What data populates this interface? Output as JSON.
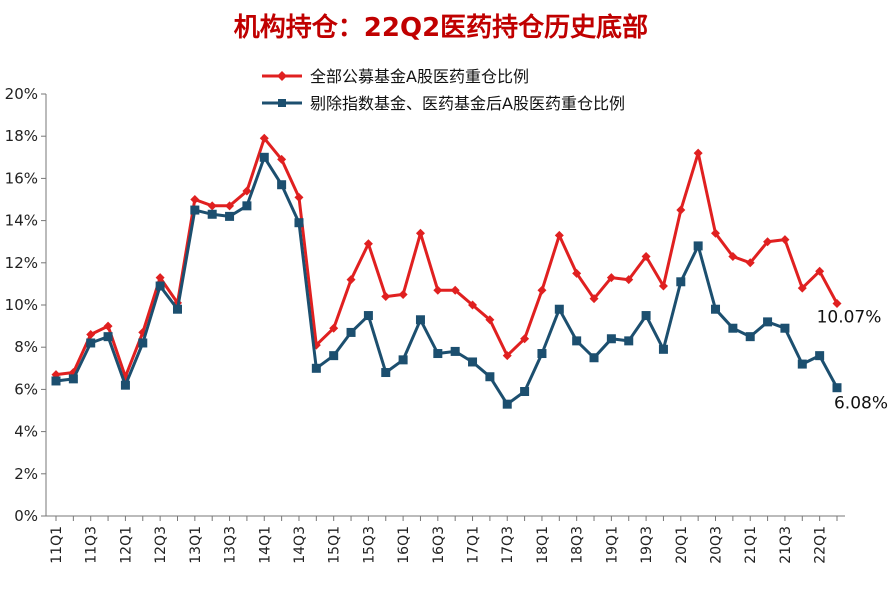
{
  "chart_data": {
    "type": "line",
    "title": "机构持仓：22Q2医药持仓历史底部",
    "xlabel": "",
    "ylabel": "",
    "ylim": [
      0,
      20
    ],
    "y_ticks": [
      "0%",
      "2%",
      "4%",
      "6%",
      "8%",
      "10%",
      "12%",
      "14%",
      "16%",
      "18%",
      "20%"
    ],
    "x": [
      "11Q1",
      "11Q2",
      "11Q3",
      "11Q4",
      "12Q1",
      "12Q2",
      "12Q3",
      "12Q4",
      "13Q1",
      "13Q2",
      "13Q3",
      "13Q4",
      "14Q1",
      "14Q2",
      "14Q3",
      "14Q4",
      "15Q1",
      "15Q2",
      "15Q3",
      "15Q4",
      "16Q1",
      "16Q2",
      "16Q3",
      "16Q4",
      "17Q1",
      "17Q2",
      "17Q3",
      "17Q4",
      "18Q1",
      "18Q2",
      "18Q3",
      "18Q4",
      "19Q1",
      "19Q2",
      "19Q3",
      "19Q4",
      "20Q1",
      "20Q2",
      "20Q3",
      "20Q4",
      "21Q1",
      "21Q2",
      "21Q3",
      "21Q4",
      "22Q1",
      "22Q2"
    ],
    "x_tick_labels": [
      "11Q1",
      "11Q3",
      "12Q1",
      "12Q3",
      "13Q1",
      "13Q3",
      "14Q1",
      "14Q3",
      "15Q1",
      "15Q3",
      "16Q1",
      "16Q3",
      "17Q1",
      "17Q3",
      "18Q1",
      "18Q3",
      "19Q1",
      "19Q3",
      "20Q1",
      "20Q3",
      "21Q1",
      "21Q3",
      "22Q1"
    ],
    "legend_position": "top-center",
    "grid": false,
    "series": [
      {
        "name": "全部公募基金A股医药重仓比例",
        "color": "#e02020",
        "marker": "diamond",
        "values": [
          6.7,
          6.8,
          8.6,
          9.0,
          6.6,
          8.7,
          11.3,
          10.1,
          15.0,
          14.7,
          14.7,
          15.4,
          17.9,
          16.9,
          15.1,
          8.1,
          8.9,
          11.2,
          12.9,
          10.4,
          10.5,
          13.4,
          10.7,
          10.7,
          10.0,
          9.3,
          7.6,
          8.4,
          10.7,
          13.3,
          11.5,
          10.3,
          11.3,
          11.2,
          12.3,
          10.9,
          14.5,
          17.2,
          13.4,
          12.3,
          12.0,
          13.0,
          13.1,
          10.8,
          11.6,
          10.07
        ],
        "end_label": "10.07%"
      },
      {
        "name": "剔除指数基金、医药基金后A股医药重仓比例",
        "color": "#1c4f6f",
        "marker": "square",
        "values": [
          6.4,
          6.5,
          8.2,
          8.5,
          6.2,
          8.2,
          10.9,
          9.8,
          14.5,
          14.3,
          14.2,
          14.7,
          17.0,
          15.7,
          13.9,
          7.0,
          7.6,
          8.7,
          9.5,
          6.8,
          7.4,
          9.3,
          7.7,
          7.8,
          7.3,
          6.6,
          5.3,
          5.9,
          7.7,
          9.8,
          8.3,
          7.5,
          8.4,
          8.3,
          9.5,
          7.9,
          11.1,
          12.8,
          9.8,
          8.9,
          8.5,
          9.2,
          8.9,
          7.2,
          7.6,
          6.08
        ],
        "end_label": "6.08%"
      }
    ]
  }
}
